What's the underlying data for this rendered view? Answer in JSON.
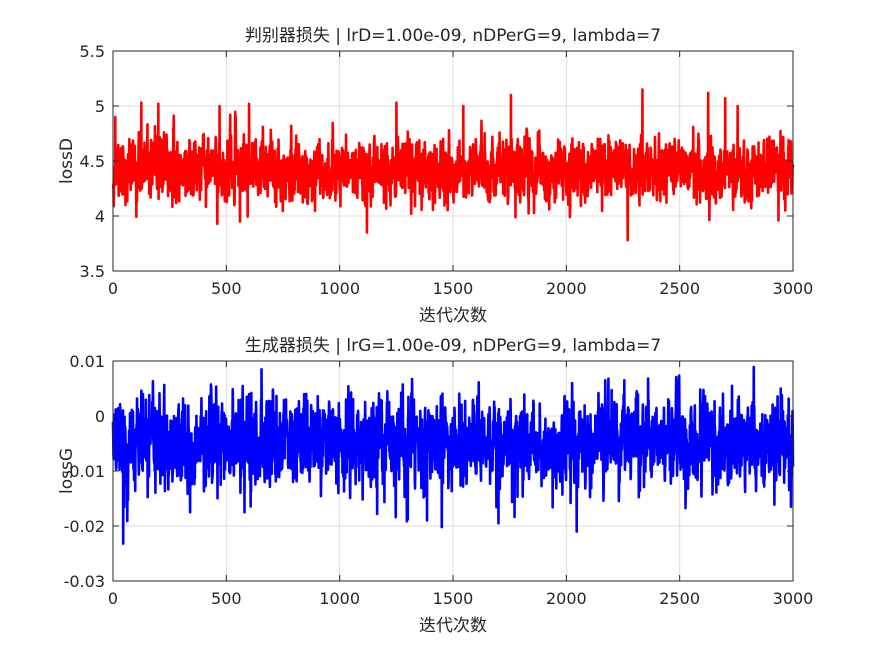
{
  "chart_data": [
    {
      "type": "line",
      "title": "判别器损失 | lrD=1.00e-09, nDPerG=9, lambda=7",
      "xlabel": "迭代次数",
      "ylabel": "lossD",
      "xlim": [
        0,
        3000
      ],
      "ylim": [
        3.5,
        5.5
      ],
      "xticks": [
        0,
        500,
        1000,
        1500,
        2000,
        2500,
        3000
      ],
      "xtick_labels": [
        "0",
        "500",
        "1000",
        "1500",
        "2000",
        "2500",
        "3000"
      ],
      "yticks": [
        3.5,
        4,
        4.5,
        5,
        5.5
      ],
      "ytick_labels": [
        "3.5",
        "4",
        "4.5",
        "5",
        "5.5"
      ],
      "grid": true,
      "series": [
        {
          "color": "#ff0000",
          "generator": {
            "kind": "noise",
            "n": 3000,
            "mean": 4.42,
            "sd": 0.13,
            "seed": 11
          },
          "spikes": [
            [
              10,
              4.9
            ],
            [
              55,
              4.1
            ],
            [
              125,
              5.03
            ],
            [
              200,
              5.02
            ],
            [
              460,
              3.93
            ],
            [
              470,
              5.0
            ],
            [
              560,
              3.95
            ],
            [
              600,
              5.02
            ],
            [
              1120,
              3.85
            ],
            [
              1250,
              5.03
            ],
            [
              1545,
              5.0
            ],
            [
              1755,
              5.1
            ],
            [
              1775,
              3.99
            ],
            [
              2270,
              3.78
            ],
            [
              2335,
              5.15
            ],
            [
              2625,
              5.12
            ],
            [
              2700,
              5.07
            ],
            [
              2755,
              5.0
            ],
            [
              2935,
              3.96
            ],
            [
              2965,
              4.05
            ]
          ]
        }
      ]
    },
    {
      "type": "line",
      "title": "生成器损失 | lrG=1.00e-09, nDPerG=9, lambda=7",
      "xlabel": "迭代次数",
      "ylabel": "lossG",
      "xlim": [
        0,
        3000
      ],
      "ylim": [
        -0.03,
        0.01
      ],
      "xticks": [
        0,
        500,
        1000,
        1500,
        2000,
        2500,
        3000
      ],
      "xtick_labels": [
        "0",
        "500",
        "1000",
        "1500",
        "2000",
        "2500",
        "3000"
      ],
      "yticks": [
        -0.03,
        -0.02,
        -0.01,
        0,
        0.01
      ],
      "ytick_labels": [
        "-0.03",
        "-0.02",
        "-0.01",
        "0",
        "0.01"
      ],
      "grid": true,
      "series": [
        {
          "color": "#0000ff",
          "generator": {
            "kind": "noise",
            "n": 3000,
            "mean": -0.0048,
            "sd": 0.0036,
            "seed": 29
          },
          "spikes": [
            [
              45,
              -0.0232
            ],
            [
              50,
              -0.0165
            ],
            [
              160,
              0.0038
            ],
            [
              340,
              -0.0175
            ],
            [
              580,
              -0.0175
            ],
            [
              590,
              0.0035
            ],
            [
              600,
              0.004
            ],
            [
              610,
              0.0042
            ],
            [
              655,
              0.0085
            ],
            [
              1165,
              -0.0178
            ],
            [
              1300,
              -0.0188
            ],
            [
              1385,
              -0.019
            ],
            [
              1450,
              -0.0202
            ],
            [
              1700,
              -0.0195
            ],
            [
              2025,
              0.006
            ],
            [
              2045,
              -0.021
            ],
            [
              2255,
              0.0065
            ],
            [
              2360,
              0.0068
            ],
            [
              2590,
              0.0048
            ],
            [
              2730,
              0.0055
            ],
            [
              2945,
              0.005
            ],
            [
              2990,
              -0.0165
            ]
          ]
        }
      ]
    }
  ]
}
